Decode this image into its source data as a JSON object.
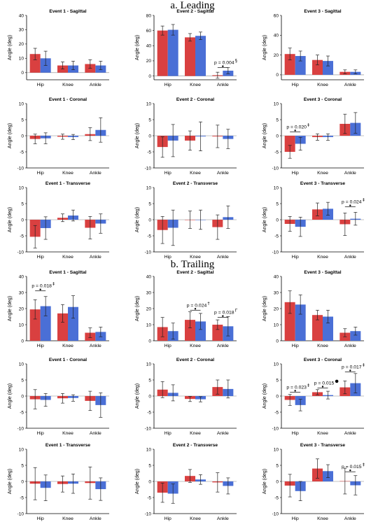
{
  "sections": [
    {
      "title": "a. Leading"
    },
    {
      "title": "b. Trailing"
    }
  ],
  "colors": {
    "series1": "#d94040",
    "series2": "#4a6fd6",
    "error_bar": "#222222",
    "axis": "#000000",
    "zero_line": "#888888"
  },
  "chart_data": [
    {
      "type": "bar",
      "title": "Event 1 - Sagittal",
      "ylabel": "Angle (deg)",
      "ylim": [
        -5,
        40
      ],
      "yticks": [
        0,
        10,
        20,
        30,
        40
      ],
      "categories": [
        "Hip",
        "Knee",
        "Ankle"
      ],
      "series": [
        {
          "values": [
            13,
            5,
            6
          ],
          "err": [
            4,
            2.5,
            3
          ]
        },
        {
          "values": [
            10,
            5,
            5
          ],
          "err": [
            5,
            3,
            3
          ]
        }
      ],
      "annotations": []
    },
    {
      "type": "bar",
      "title": "Event 2 - Sagittal",
      "ylabel": "Angle (deg)",
      "ylim": [
        -5,
        80
      ],
      "yticks": [
        0,
        20,
        40,
        60,
        80
      ],
      "categories": [
        "Hip",
        "Knee",
        "Ankle"
      ],
      "series": [
        {
          "values": [
            60,
            51,
            1
          ],
          "err": [
            6,
            5,
            4
          ]
        },
        {
          "values": [
            61,
            53,
            7
          ],
          "err": [
            7,
            5,
            4
          ]
        }
      ],
      "annotations": [
        {
          "cat": 2,
          "y": 11,
          "text": "p = 0.004",
          "mark": "§"
        }
      ]
    },
    {
      "type": "bar",
      "title": "Event 3 - Sagittal",
      "ylabel": "Angle (deg)",
      "ylim": [
        -5,
        60
      ],
      "yticks": [
        0,
        20,
        40,
        60
      ],
      "categories": [
        "Hip",
        "Knee",
        "Ankle"
      ],
      "series": [
        {
          "values": [
            21,
            15,
            3
          ],
          "err": [
            6,
            5,
            2
          ]
        },
        {
          "values": [
            19,
            14,
            3
          ],
          "err": [
            5,
            5,
            2
          ]
        }
      ],
      "annotations": []
    },
    {
      "type": "bar",
      "title": "Event 1 - Coronal",
      "ylabel": "Angle (deg)",
      "ylim": [
        -10,
        10
      ],
      "yticks": [
        -10,
        -5,
        0,
        5,
        10
      ],
      "categories": [
        "Hip",
        "Knee",
        "Ankle"
      ],
      "series": [
        {
          "values": [
            -1,
            -0.3,
            0.5
          ],
          "err": [
            1.5,
            0.8,
            2
          ]
        },
        {
          "values": [
            -0.8,
            -0.4,
            1.8
          ],
          "err": [
            1.7,
            0.8,
            3.8
          ]
        }
      ],
      "annotations": []
    },
    {
      "type": "bar",
      "title": "Event 2 - Coronal",
      "ylabel": "Angle (deg)",
      "ylim": [
        -10,
        10
      ],
      "yticks": [
        -10,
        -5,
        0,
        5,
        10
      ],
      "categories": [
        "Hip",
        "Knee",
        "Ankle"
      ],
      "series": [
        {
          "values": [
            -3.5,
            -1.5,
            -0.2
          ],
          "err": [
            3.2,
            3,
            3.5
          ]
        },
        {
          "values": [
            -1.5,
            -0.2,
            -1
          ],
          "err": [
            5,
            4.5,
            3
          ]
        }
      ],
      "annotations": []
    },
    {
      "type": "bar",
      "title": "Event 3 - Coronal",
      "ylabel": "Angle (deg)",
      "ylim": [
        -10,
        10
      ],
      "yticks": [
        -10,
        -5,
        0,
        5,
        10
      ],
      "categories": [
        "Hip",
        "Knee",
        "Ankle"
      ],
      "series": [
        {
          "values": [
            -5,
            -0.4,
            3.7
          ],
          "err": [
            2,
            1,
            3
          ]
        },
        {
          "values": [
            -2.5,
            -0.4,
            4
          ],
          "err": [
            2,
            1,
            3.2
          ]
        }
      ],
      "annotations": [
        {
          "cat": 0,
          "y": 1.2,
          "text": "p = 0.020",
          "mark": "‡"
        }
      ]
    },
    {
      "type": "bar",
      "title": "Event 1 - Transverse",
      "ylabel": "Angle (deg)",
      "ylim": [
        -10,
        10
      ],
      "yticks": [
        -10,
        -5,
        0,
        5,
        10
      ],
      "categories": [
        "Hip",
        "Knee",
        "Ankle"
      ],
      "series": [
        {
          "values": [
            -5.3,
            0.6,
            -2.5
          ],
          "err": [
            3.5,
            1.2,
            3.5
          ]
        },
        {
          "values": [
            -2.6,
            1.3,
            -1.2
          ],
          "err": [
            3.5,
            1.7,
            3
          ]
        }
      ],
      "annotations": []
    },
    {
      "type": "bar",
      "title": "Event 2 - Transverse",
      "ylabel": "Angle (deg)",
      "ylim": [
        -10,
        10
      ],
      "yticks": [
        -10,
        -5,
        0,
        5,
        10
      ],
      "categories": [
        "Hip",
        "Knee",
        "Ankle"
      ],
      "series": [
        {
          "values": [
            -3.2,
            0,
            -2.3
          ],
          "err": [
            4.2,
            2.7,
            3.8
          ]
        },
        {
          "values": [
            -2.5,
            0,
            0.8
          ],
          "err": [
            5.5,
            3,
            3.5
          ]
        }
      ],
      "annotations": []
    },
    {
      "type": "bar",
      "title": "Event 3 - Transverse",
      "ylabel": "Angle (deg)",
      "ylim": [
        -10,
        10
      ],
      "yticks": [
        -10,
        -5,
        0,
        5,
        10
      ],
      "categories": [
        "Hip",
        "Knee",
        "Ankle"
      ],
      "series": [
        {
          "values": [
            -1.3,
            3.2,
            -1.4
          ],
          "err": [
            2.3,
            2,
            3.5
          ]
        },
        {
          "values": [
            -2.2,
            3.4,
            0.3
          ],
          "err": [
            3,
            2,
            2
          ]
        }
      ],
      "annotations": [
        {
          "cat": 2,
          "y": 4,
          "text": "p = 0.024",
          "mark": "‡"
        }
      ]
    },
    {
      "type": "bar",
      "title": "Event 1 - Sagittal",
      "ylabel": "Angle (deg)",
      "ylim": [
        0,
        40
      ],
      "yticks": [
        0,
        10,
        20,
        30,
        40
      ],
      "categories": [
        "Hip",
        "Knee",
        "Ankle"
      ],
      "series": [
        {
          "values": [
            19.5,
            17,
            5
          ],
          "err": [
            6,
            5.5,
            3
          ]
        },
        {
          "values": [
            21.5,
            21,
            5.5
          ],
          "err": [
            6,
            7,
            3
          ]
        }
      ],
      "annotations": [
        {
          "cat": 0,
          "y": 31,
          "text": "p = 0.018",
          "mark": "‡"
        }
      ]
    },
    {
      "type": "bar",
      "title": "Event 2 - Sagittal",
      "ylabel": "Angle (deg)",
      "ylim": [
        0,
        40
      ],
      "yticks": [
        0,
        10,
        20,
        30,
        40
      ],
      "categories": [
        "Hip",
        "Knee",
        "Ankle"
      ],
      "series": [
        {
          "values": [
            8.5,
            13,
            10
          ],
          "err": [
            6,
            5,
            3
          ]
        },
        {
          "values": [
            6,
            12,
            9
          ],
          "err": [
            5,
            5,
            6
          ]
        }
      ],
      "annotations": [
        {
          "cat": 1,
          "y": 19,
          "text": "p = 0.024",
          "mark": "†"
        },
        {
          "cat": 2,
          "y": 14.5,
          "text": "p = 0.018",
          "mark": "Γ"
        }
      ]
    },
    {
      "type": "bar",
      "title": "Event 3 - Sagittal",
      "ylabel": "Angle (deg)",
      "ylim": [
        0,
        40
      ],
      "yticks": [
        0,
        10,
        20,
        30,
        40
      ],
      "categories": [
        "Hip",
        "Knee",
        "Ankle"
      ],
      "series": [
        {
          "values": [
            24,
            16,
            5
          ],
          "err": [
            7,
            3,
            2.5
          ]
        },
        {
          "values": [
            22.5,
            15,
            6
          ],
          "err": [
            6,
            4,
            2.5
          ]
        }
      ],
      "annotations": []
    },
    {
      "type": "bar",
      "title": "Event 1 - Coronal",
      "ylabel": "Angle (deg)",
      "ylim": [
        -10,
        10
      ],
      "yticks": [
        -10,
        -5,
        0,
        5,
        10
      ],
      "categories": [
        "Hip",
        "Knee",
        "Ankle"
      ],
      "series": [
        {
          "values": [
            -1,
            -0.7,
            -1.5
          ],
          "err": [
            3,
            1.5,
            3
          ]
        },
        {
          "values": [
            -1.2,
            -0.6,
            -2.8
          ],
          "err": [
            2,
            1,
            3.8
          ]
        }
      ],
      "annotations": []
    },
    {
      "type": "bar",
      "title": "Event 2 - Coronal",
      "ylabel": "Angle (deg)",
      "ylim": [
        -10,
        10
      ],
      "yticks": [
        -10,
        -5,
        0,
        5,
        10
      ],
      "categories": [
        "Hip",
        "Knee",
        "Ankle"
      ],
      "series": [
        {
          "values": [
            2,
            -0.9,
            2.8
          ],
          "err": [
            2.5,
            0.8,
            2.2
          ]
        },
        {
          "values": [
            1,
            -1,
            2.2
          ],
          "err": [
            2.5,
            0.8,
            2.8
          ]
        }
      ],
      "annotations": []
    },
    {
      "type": "bar",
      "title": "Event 3 - Coronal",
      "ylabel": "Angle (deg)",
      "ylim": [
        -10,
        10
      ],
      "yticks": [
        -10,
        -5,
        0,
        5,
        10
      ],
      "categories": [
        "Hip",
        "Knee",
        "Ankle"
      ],
      "series": [
        {
          "values": [
            -1.2,
            1.2,
            2.7
          ],
          "err": [
            1.7,
            0.8,
            2
          ]
        },
        {
          "values": [
            -2.8,
            0.3,
            4
          ],
          "err": [
            1.8,
            1.2,
            3
          ]
        }
      ],
      "annotations": [
        {
          "cat": 0,
          "y": 1.2,
          "text": "p = 0.023",
          "mark": "‡"
        },
        {
          "cat": 1,
          "y": 2.5,
          "text": "p = 0.015",
          "mark": "●"
        },
        {
          "cat": 2,
          "y": 7.5,
          "text": "p = 0.017",
          "mark": "‡"
        }
      ]
    },
    {
      "type": "bar",
      "title": "Event 1 - Transverse",
      "ylabel": "Angle (deg)",
      "ylim": [
        -10,
        10
      ],
      "yticks": [
        -10,
        -5,
        0,
        5,
        10
      ],
      "categories": [
        "Hip",
        "Knee",
        "Ankle"
      ],
      "series": [
        {
          "values": [
            -0.7,
            -0.8,
            -0.5
          ],
          "err": [
            5,
            2.5,
            5
          ]
        },
        {
          "values": [
            -2,
            -0.7,
            -2.4
          ],
          "err": [
            4,
            3,
            3.5
          ]
        }
      ],
      "annotations": []
    },
    {
      "type": "bar",
      "title": "Event 2 - Transverse",
      "ylabel": "Angle (deg)",
      "ylim": [
        -10,
        10
      ],
      "yticks": [
        -10,
        -5,
        0,
        5,
        10
      ],
      "categories": [
        "Hip",
        "Knee",
        "Ankle"
      ],
      "series": [
        {
          "values": [
            -3.5,
            1.7,
            -0.3
          ],
          "err": [
            3,
            2,
            3
          ]
        },
        {
          "values": [
            -3.8,
            0.6,
            -1.4
          ],
          "err": [
            3,
            1.5,
            2.5
          ]
        }
      ],
      "annotations": []
    },
    {
      "type": "bar",
      "title": "Event 3 - Transverse",
      "ylabel": "Angle (deg)",
      "ylim": [
        -10,
        10
      ],
      "yticks": [
        -10,
        -5,
        0,
        5,
        10
      ],
      "categories": [
        "Hip",
        "Knee",
        "Ankle"
      ],
      "series": [
        {
          "values": [
            -1.3,
            4,
            0.1
          ],
          "err": [
            3.5,
            3,
            4
          ]
        },
        {
          "values": [
            -3,
            3.2,
            -1.2
          ],
          "err": [
            3,
            2,
            3
          ]
        }
      ],
      "annotations": [
        {
          "cat": 2,
          "y": 3,
          "text": "p = 0.015",
          "mark": "‡"
        }
      ]
    }
  ]
}
